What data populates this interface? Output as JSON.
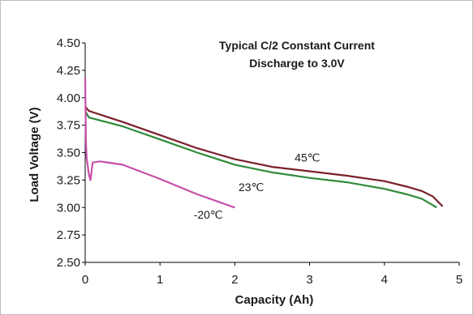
{
  "chart_data": {
    "type": "line",
    "title": [
      "Typical C/2 Constant Current",
      "Discharge to 3.0V"
    ],
    "xlabel": "Capacity (Ah)",
    "ylabel": "Load Voltage (V)",
    "xlim": [
      0,
      5
    ],
    "ylim": [
      2.5,
      4.5
    ],
    "xticks": [
      0,
      1,
      2,
      3,
      4,
      5
    ],
    "xtick_labels": [
      "0",
      "1",
      "2",
      "3",
      "4",
      "5"
    ],
    "yticks": [
      2.5,
      2.75,
      3.0,
      3.25,
      3.5,
      3.75,
      4.0,
      4.25,
      4.5
    ],
    "ytick_labels": [
      "2.50",
      "2.75",
      "3.00",
      "3.25",
      "3.50",
      "3.75",
      "4.00",
      "4.25",
      "4.50"
    ],
    "grid": false,
    "legend": "inline labels",
    "series": [
      {
        "name": "45℃",
        "color": "#7b1f2a",
        "label_at": [
          2.8,
          3.42
        ],
        "x": [
          0,
          0.05,
          0.5,
          1.0,
          1.5,
          2.0,
          2.5,
          3.0,
          3.5,
          4.0,
          4.3,
          4.5,
          4.65,
          4.72,
          4.78
        ],
        "y": [
          3.92,
          3.88,
          3.78,
          3.66,
          3.54,
          3.44,
          3.37,
          3.33,
          3.29,
          3.24,
          3.19,
          3.15,
          3.1,
          3.05,
          3.01
        ]
      },
      {
        "name": "23℃",
        "color": "#2e8b3a",
        "label_at": [
          2.05,
          3.15
        ],
        "x": [
          0,
          0.05,
          0.5,
          1.0,
          1.5,
          2.0,
          2.5,
          3.0,
          3.5,
          4.0,
          4.3,
          4.5,
          4.6,
          4.7
        ],
        "y": [
          3.88,
          3.82,
          3.74,
          3.62,
          3.5,
          3.39,
          3.32,
          3.27,
          3.23,
          3.17,
          3.12,
          3.08,
          3.04,
          3.0
        ]
      },
      {
        "name": "-20℃",
        "color": "#c64fa8",
        "label_at": [
          1.45,
          2.9
        ],
        "x": [
          0,
          0.01,
          0.02,
          0.03,
          0.05,
          0.07,
          0.1,
          0.2,
          0.5,
          1.0,
          1.5,
          2.0
        ],
        "y": [
          4.18,
          3.6,
          3.45,
          3.4,
          3.3,
          3.25,
          3.41,
          3.42,
          3.39,
          3.26,
          3.12,
          3.0
        ]
      }
    ]
  }
}
